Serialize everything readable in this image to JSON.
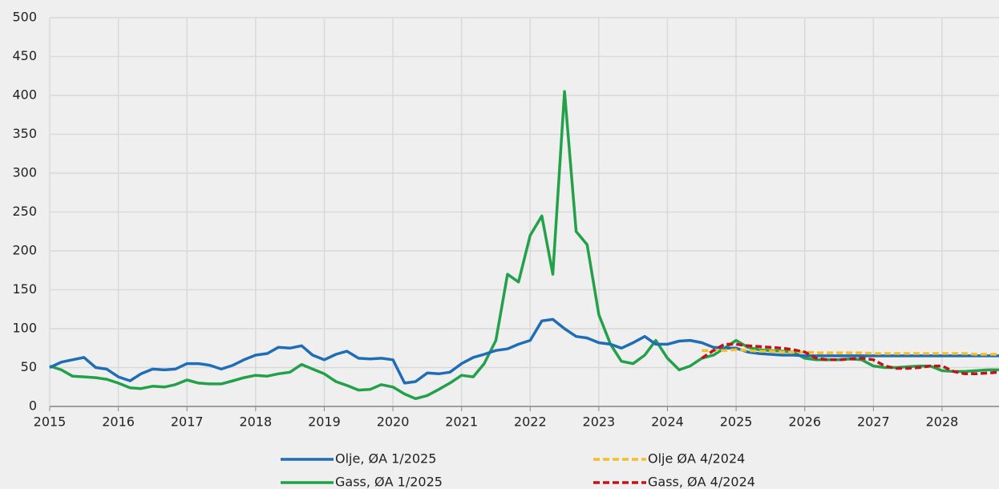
{
  "chart_data": {
    "type": "line",
    "x": [
      2015,
      2015.17,
      2015.33,
      2015.5,
      2015.67,
      2015.83,
      2016,
      2016.17,
      2016.33,
      2016.5,
      2016.67,
      2016.83,
      2017,
      2017.17,
      2017.33,
      2017.5,
      2017.67,
      2017.83,
      2018,
      2018.17,
      2018.33,
      2018.5,
      2018.67,
      2018.83,
      2019,
      2019.17,
      2019.33,
      2019.5,
      2019.67,
      2019.83,
      2020,
      2020.17,
      2020.33,
      2020.5,
      2020.67,
      2020.83,
      2021,
      2021.17,
      2021.33,
      2021.5,
      2021.67,
      2021.83,
      2022,
      2022.17,
      2022.33,
      2022.5,
      2022.67,
      2022.83,
      2023,
      2023.17,
      2023.33,
      2023.5,
      2023.67,
      2023.83,
      2024,
      2024.17,
      2024.33,
      2024.5,
      2024.67,
      2024.83,
      2025,
      2025.17,
      2025.33,
      2025.5,
      2025.67,
      2025.83,
      2026,
      2026.17,
      2026.33,
      2026.5,
      2026.67,
      2026.83,
      2027,
      2027.17,
      2027.33,
      2027.5,
      2027.67,
      2027.83,
      2028,
      2028.17,
      2028.33,
      2028.5,
      2028.67,
      2028.83
    ],
    "series": [
      {
        "name": "Olje, ØA 1/2025",
        "color": "#1f6db5",
        "dash": false,
        "values": [
          50,
          57,
          60,
          63,
          50,
          48,
          38,
          33,
          42,
          48,
          47,
          48,
          55,
          55,
          53,
          48,
          53,
          60,
          66,
          68,
          76,
          75,
          78,
          66,
          60,
          67,
          71,
          62,
          61,
          62,
          60,
          30,
          32,
          43,
          42,
          44,
          55,
          63,
          67,
          72,
          74,
          80,
          85,
          110,
          112,
          100,
          90,
          88,
          82,
          80,
          75,
          82,
          90,
          80,
          80,
          84,
          85,
          82,
          76,
          75,
          75,
          70,
          68,
          67,
          66,
          66,
          65,
          65,
          65,
          65,
          65,
          65,
          65,
          65,
          65,
          65,
          65,
          65,
          65,
          65,
          65,
          65,
          65,
          65
        ]
      },
      {
        "name": "Olje ØA 4/2024",
        "color": "#f5bf2a",
        "dash": true,
        "values": [
          null,
          null,
          null,
          null,
          null,
          null,
          null,
          null,
          null,
          null,
          null,
          null,
          null,
          null,
          null,
          null,
          null,
          null,
          null,
          null,
          null,
          null,
          null,
          null,
          null,
          null,
          null,
          null,
          null,
          null,
          null,
          null,
          null,
          null,
          null,
          null,
          null,
          null,
          null,
          null,
          null,
          null,
          null,
          null,
          null,
          null,
          null,
          null,
          null,
          null,
          null,
          null,
          null,
          null,
          null,
          null,
          null,
          72,
          72,
          72,
          73,
          72,
          71,
          71,
          70,
          70,
          70,
          69,
          69,
          69,
          69,
          69,
          68,
          68,
          68,
          68,
          68,
          68,
          68,
          68,
          68,
          67,
          67,
          67
        ]
      },
      {
        "name": "Gass, ØA 1/2025",
        "color": "#23a04a",
        "dash": false,
        "values": [
          52,
          47,
          39,
          38,
          37,
          35,
          30,
          24,
          23,
          26,
          25,
          28,
          34,
          30,
          29,
          29,
          33,
          37,
          40,
          39,
          42,
          44,
          54,
          48,
          42,
          32,
          27,
          21,
          22,
          28,
          25,
          16,
          10,
          14,
          22,
          30,
          40,
          38,
          55,
          85,
          170,
          160,
          220,
          245,
          170,
          405,
          225,
          208,
          118,
          80,
          58,
          55,
          66,
          85,
          62,
          47,
          52,
          62,
          66,
          75,
          85,
          76,
          73,
          72,
          71,
          70,
          62,
          60,
          60,
          60,
          61,
          60,
          52,
          50,
          50,
          51,
          52,
          52,
          46,
          45,
          45,
          46,
          47,
          47
        ]
      },
      {
        "name": "Gass, ØA 4/2024",
        "color": "#c0141b",
        "dash": true,
        "values": [
          null,
          null,
          null,
          null,
          null,
          null,
          null,
          null,
          null,
          null,
          null,
          null,
          null,
          null,
          null,
          null,
          null,
          null,
          null,
          null,
          null,
          null,
          null,
          null,
          null,
          null,
          null,
          null,
          null,
          null,
          null,
          null,
          null,
          null,
          null,
          null,
          null,
          null,
          null,
          null,
          null,
          null,
          null,
          null,
          null,
          null,
          null,
          null,
          null,
          null,
          null,
          null,
          null,
          null,
          null,
          null,
          null,
          62,
          72,
          80,
          80,
          78,
          77,
          76,
          75,
          73,
          70,
          62,
          60,
          60,
          61,
          62,
          60,
          52,
          49,
          49,
          50,
          52,
          52,
          45,
          42,
          42,
          43,
          44
        ]
      }
    ],
    "xlim": [
      2015,
      2028.83
    ],
    "xticks": [
      2015,
      2016,
      2017,
      2018,
      2019,
      2020,
      2021,
      2022,
      2023,
      2024,
      2025,
      2026,
      2027,
      2028
    ],
    "ylim": [
      0,
      500
    ],
    "yticks": [
      0,
      50,
      100,
      150,
      200,
      250,
      300,
      350,
      400,
      450,
      500
    ],
    "grid": true,
    "legend": "bottom"
  }
}
